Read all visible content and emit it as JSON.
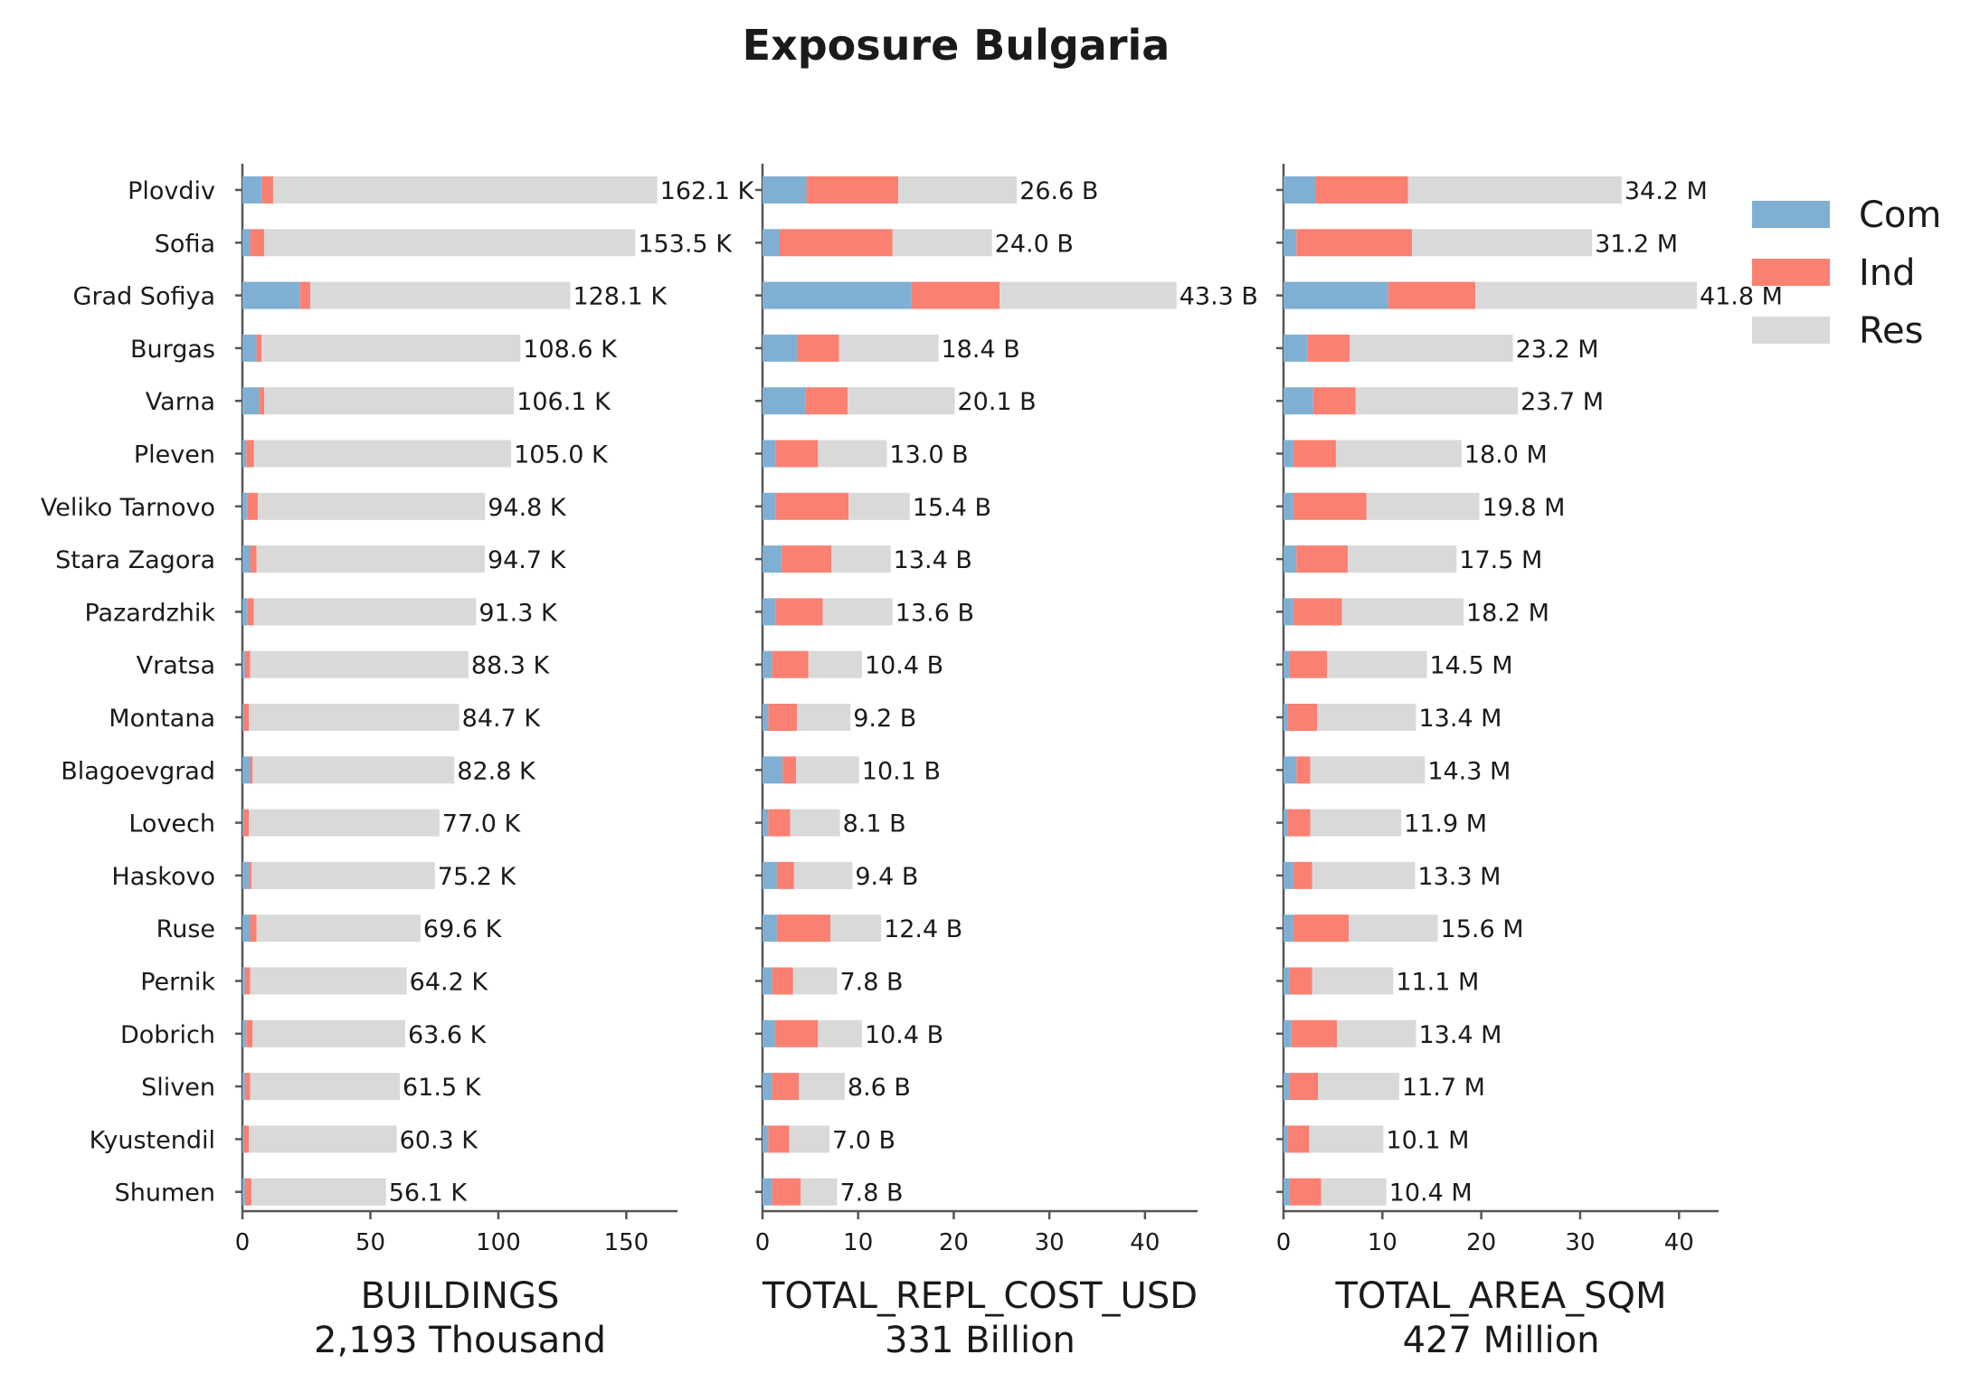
{
  "chart_data": {
    "type": "bar",
    "orientation": "horizontal",
    "stacked": true,
    "title": "Exposure Bulgaria",
    "categories": [
      "Plovdiv",
      "Sofia",
      "Grad Sofiya",
      "Burgas",
      "Varna",
      "Pleven",
      "Veliko Tarnovo",
      "Stara Zagora",
      "Pazardzhik",
      "Vratsa",
      "Montana",
      "Blagoevgrad",
      "Lovech",
      "Haskovo",
      "Ruse",
      "Pernik",
      "Dobrich",
      "Sliven",
      "Kyustendil",
      "Shumen"
    ],
    "legend": {
      "placement": "top-right",
      "entries": [
        {
          "name": "Com",
          "color": "#7fb0d3"
        },
        {
          "name": "Ind",
          "color": "#fa8072"
        },
        {
          "name": "Res",
          "color": "#d9d9d9"
        }
      ]
    },
    "panels": [
      {
        "xlabel": "BUILDINGS",
        "xlabel_sub": "2,193 Thousand",
        "xlim": [
          0,
          170
        ],
        "xticks": [
          0,
          50,
          100,
          150
        ],
        "series": [
          {
            "name": "Com",
            "values": [
              7.5,
              3.0,
              22.5,
              5.5,
              6.5,
              1.5,
              2.0,
              3.0,
              2.0,
              1.0,
              0.5,
              3.0,
              0.5,
              2.5,
              3.0,
              1.0,
              1.5,
              1.0,
              0.5,
              1.0
            ]
          },
          {
            "name": "Ind",
            "values": [
              4.5,
              5.5,
              4.0,
              2.0,
              2.0,
              3.0,
              4.0,
              2.5,
              2.5,
              2.0,
              2.0,
              1.0,
              2.0,
              1.0,
              2.5,
              2.0,
              2.5,
              2.0,
              2.0,
              2.5
            ]
          },
          {
            "name": "Res",
            "values": [
              150.1,
              145.0,
              101.6,
              101.1,
              97.6,
              100.5,
              88.8,
              89.2,
              86.8,
              85.3,
              82.2,
              78.8,
              74.5,
              71.7,
              64.1,
              61.2,
              59.6,
              58.5,
              57.8,
              52.6
            ]
          }
        ],
        "totals": [
          162.1,
          153.5,
          128.1,
          108.6,
          106.1,
          105.0,
          94.8,
          94.7,
          91.3,
          88.3,
          84.7,
          82.8,
          77.0,
          75.2,
          69.6,
          64.2,
          63.6,
          61.5,
          60.3,
          56.1
        ],
        "labels": [
          "162.1 K",
          "153.5 K",
          "128.1 K",
          "108.6 K",
          "106.1 K",
          "105.0 K",
          "94.8 K",
          "94.7 K",
          "91.3 K",
          "88.3 K",
          "84.7 K",
          "82.8 K",
          "77.0 K",
          "75.2 K",
          "69.6 K",
          "64.2 K",
          "63.6 K",
          "61.5 K",
          "60.3 K",
          "56.1 K"
        ]
      },
      {
        "xlabel": "TOTAL_REPL_COST_USD",
        "xlabel_sub": "331 Billion",
        "xlim": [
          0,
          45.5
        ],
        "xticks": [
          0,
          10,
          20,
          30,
          40
        ],
        "series": [
          {
            "name": "Com",
            "values": [
              4.6,
              1.8,
              15.6,
              3.6,
              4.5,
              1.4,
              1.4,
              2.0,
              1.4,
              1.0,
              0.6,
              2.1,
              0.6,
              1.5,
              1.5,
              1.0,
              1.3,
              1.0,
              0.6,
              1.0
            ]
          },
          {
            "name": "Ind",
            "values": [
              9.6,
              11.8,
              9.2,
              4.4,
              4.4,
              4.4,
              7.6,
              5.2,
              4.9,
              3.8,
              3.0,
              1.4,
              2.3,
              1.8,
              5.6,
              2.2,
              4.5,
              2.8,
              2.2,
              3.0
            ]
          },
          {
            "name": "Res",
            "values": [
              12.4,
              10.4,
              18.5,
              10.4,
              11.2,
              7.2,
              6.4,
              6.2,
              7.3,
              5.6,
              5.6,
              6.6,
              5.2,
              6.1,
              5.3,
              4.6,
              4.6,
              4.8,
              4.2,
              3.8
            ]
          }
        ],
        "totals": [
          26.6,
          24.0,
          43.3,
          18.4,
          20.1,
          13.0,
          15.4,
          13.4,
          13.6,
          10.4,
          9.2,
          10.1,
          8.1,
          9.4,
          12.4,
          7.8,
          10.4,
          8.6,
          7.0,
          7.8
        ],
        "labels": [
          "26.6 B",
          "24.0 B",
          "43.3 B",
          "18.4 B",
          "20.1 B",
          "13.0 B",
          "15.4 B",
          "13.4 B",
          "13.6 B",
          "10.4 B",
          "9.2 B",
          "10.1 B",
          "8.1 B",
          "9.4 B",
          "12.4 B",
          "7.8 B",
          "10.4 B",
          "8.6 B",
          "7.0 B",
          "7.8 B"
        ]
      },
      {
        "xlabel": "TOTAL_AREA_SQM",
        "xlabel_sub": "427 Million",
        "xlim": [
          0,
          44
        ],
        "xticks": [
          0,
          10,
          20,
          30,
          40
        ],
        "series": [
          {
            "name": "Com",
            "values": [
              3.2,
              1.3,
              10.6,
              2.4,
              3.0,
              1.0,
              1.0,
              1.3,
              1.0,
              0.6,
              0.4,
              1.3,
              0.4,
              1.0,
              1.0,
              0.6,
              0.8,
              0.6,
              0.4,
              0.6
            ]
          },
          {
            "name": "Ind",
            "values": [
              9.4,
              11.7,
              8.8,
              4.3,
              4.3,
              4.3,
              7.4,
              5.2,
              4.9,
              3.8,
              3.0,
              1.4,
              2.3,
              1.9,
              5.6,
              2.3,
              4.6,
              2.9,
              2.2,
              3.2
            ]
          },
          {
            "name": "Res",
            "values": [
              21.6,
              18.2,
              22.4,
              16.5,
              16.4,
              12.7,
              11.4,
              11.0,
              12.3,
              10.1,
              10.0,
              11.6,
              9.2,
              10.4,
              9.0,
              8.2,
              8.0,
              8.2,
              7.5,
              6.6
            ]
          }
        ],
        "totals": [
          34.2,
          31.2,
          41.8,
          23.2,
          23.7,
          18.0,
          19.8,
          17.5,
          18.2,
          14.5,
          13.4,
          14.3,
          11.9,
          13.3,
          15.6,
          11.1,
          13.4,
          11.7,
          10.1,
          10.4
        ],
        "labels": [
          "34.2 M",
          "31.2 M",
          "41.8 M",
          "23.2 M",
          "23.7 M",
          "18.0 M",
          "19.8 M",
          "17.5 M",
          "18.2 M",
          "14.5 M",
          "13.4 M",
          "14.3 M",
          "11.9 M",
          "13.3 M",
          "15.6 M",
          "11.1 M",
          "13.4 M",
          "11.7 M",
          "10.1 M",
          "10.4 M"
        ]
      }
    ]
  }
}
